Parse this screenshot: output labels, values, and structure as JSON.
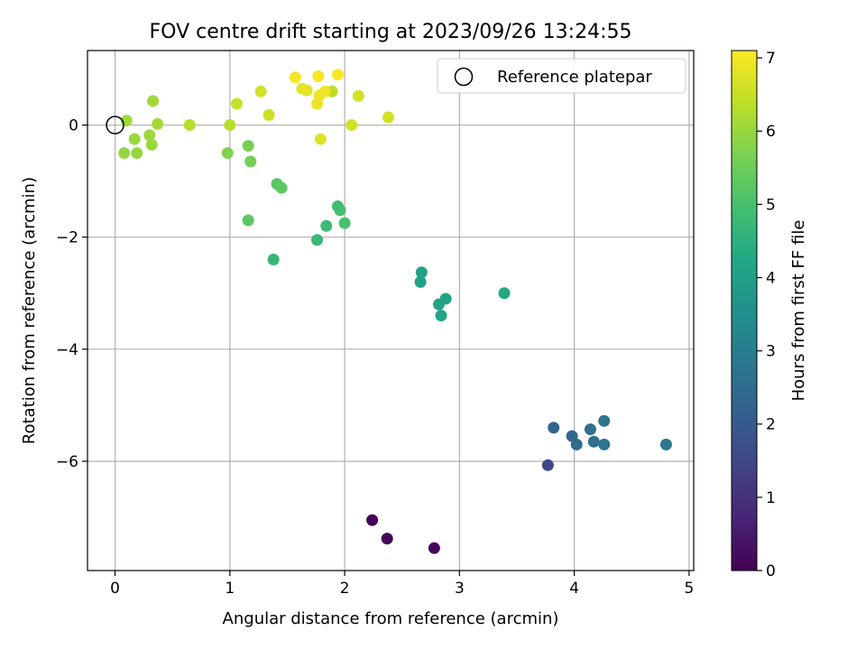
{
  "chart_data": {
    "type": "scatter",
    "title": "FOV centre drift starting at 2023/09/26 13:24:55",
    "xlabel": "Angular distance from reference (arcmin)",
    "ylabel": "Rotation from reference (arcmin)",
    "xlim": [
      -0.24,
      5.04
    ],
    "ylim": [
      -7.95,
      1.33
    ],
    "x_ticks": [
      0,
      1,
      2,
      3,
      4,
      5
    ],
    "y_ticks": [
      -6,
      -4,
      -2,
      0
    ],
    "grid": true,
    "legend": {
      "placement": "top-right",
      "entries": [
        "Reference platepar"
      ]
    },
    "colorbar": {
      "label": "Hours from first FF file",
      "ticks": [
        0,
        1,
        2,
        3,
        4,
        5,
        6,
        7
      ],
      "range": [
        0,
        7.1
      ],
      "colormap": "viridis"
    },
    "reference_point": {
      "x": 0,
      "y": 0
    },
    "points": [
      {
        "x": 2.24,
        "y": -7.05,
        "hours": 0.05
      },
      {
        "x": 2.37,
        "y": -7.38,
        "hours": 0.1
      },
      {
        "x": 2.78,
        "y": -7.55,
        "hours": 0.15
      },
      {
        "x": 3.77,
        "y": -6.07,
        "hours": 1.5
      },
      {
        "x": 3.82,
        "y": -5.4,
        "hours": 2.3
      },
      {
        "x": 3.98,
        "y": -5.55,
        "hours": 2.4
      },
      {
        "x": 4.02,
        "y": -5.7,
        "hours": 2.5
      },
      {
        "x": 4.14,
        "y": -5.43,
        "hours": 2.55
      },
      {
        "x": 4.17,
        "y": -5.65,
        "hours": 2.6
      },
      {
        "x": 4.26,
        "y": -5.28,
        "hours": 2.7
      },
      {
        "x": 4.26,
        "y": -5.7,
        "hours": 2.75
      },
      {
        "x": 4.8,
        "y": -5.7,
        "hours": 2.8
      },
      {
        "x": 2.66,
        "y": -2.8,
        "hours": 4.0
      },
      {
        "x": 2.67,
        "y": -2.63,
        "hours": 4.05
      },
      {
        "x": 2.82,
        "y": -3.2,
        "hours": 4.1
      },
      {
        "x": 2.84,
        "y": -3.4,
        "hours": 4.1
      },
      {
        "x": 2.88,
        "y": -3.1,
        "hours": 4.15
      },
      {
        "x": 3.39,
        "y": -3.0,
        "hours": 4.2
      },
      {
        "x": 1.38,
        "y": -2.4,
        "hours": 4.7
      },
      {
        "x": 1.76,
        "y": -2.05,
        "hours": 4.75
      },
      {
        "x": 1.84,
        "y": -1.8,
        "hours": 4.85
      },
      {
        "x": 1.94,
        "y": -1.45,
        "hours": 4.9
      },
      {
        "x": 1.96,
        "y": -1.52,
        "hours": 4.95
      },
      {
        "x": 2.0,
        "y": -1.75,
        "hours": 5.0
      },
      {
        "x": 1.16,
        "y": -1.7,
        "hours": 5.3
      },
      {
        "x": 1.41,
        "y": -1.05,
        "hours": 5.25
      },
      {
        "x": 1.45,
        "y": -1.12,
        "hours": 5.3
      },
      {
        "x": 1.18,
        "y": -0.65,
        "hours": 5.6
      },
      {
        "x": 1.16,
        "y": -0.37,
        "hours": 5.65
      },
      {
        "x": 0.98,
        "y": -0.5,
        "hours": 5.75
      },
      {
        "x": 0.08,
        "y": -0.5,
        "hours": 5.95
      },
      {
        "x": 0.19,
        "y": -0.5,
        "hours": 5.95
      },
      {
        "x": 0.17,
        "y": -0.25,
        "hours": 6.0
      },
      {
        "x": 0.32,
        "y": -0.35,
        "hours": 6.0
      },
      {
        "x": 0.3,
        "y": -0.18,
        "hours": 6.05
      },
      {
        "x": 0.1,
        "y": 0.08,
        "hours": 6.1
      },
      {
        "x": 0.37,
        "y": 0.02,
        "hours": 6.1
      },
      {
        "x": 0.33,
        "y": 0.43,
        "hours": 6.1
      },
      {
        "x": 0.65,
        "y": 0.0,
        "hours": 6.3
      },
      {
        "x": 1.0,
        "y": 0.0,
        "hours": 6.3
      },
      {
        "x": 1.89,
        "y": 0.6,
        "hours": 6.35
      },
      {
        "x": 1.06,
        "y": 0.38,
        "hours": 6.5
      },
      {
        "x": 1.34,
        "y": 0.18,
        "hours": 6.55
      },
      {
        "x": 1.27,
        "y": 0.6,
        "hours": 6.6
      },
      {
        "x": 2.12,
        "y": 0.52,
        "hours": 6.6
      },
      {
        "x": 2.06,
        "y": 0.0,
        "hours": 6.6
      },
      {
        "x": 2.38,
        "y": 0.14,
        "hours": 6.6
      },
      {
        "x": 1.79,
        "y": -0.25,
        "hours": 6.75
      },
      {
        "x": 1.63,
        "y": 0.65,
        "hours": 6.8
      },
      {
        "x": 1.67,
        "y": 0.62,
        "hours": 6.85
      },
      {
        "x": 1.76,
        "y": 0.38,
        "hours": 6.9
      },
      {
        "x": 1.78,
        "y": 0.53,
        "hours": 6.9
      },
      {
        "x": 1.83,
        "y": 0.6,
        "hours": 6.95
      },
      {
        "x": 1.57,
        "y": 0.85,
        "hours": 7.0
      },
      {
        "x": 1.77,
        "y": 0.87,
        "hours": 7.0
      },
      {
        "x": 1.94,
        "y": 0.9,
        "hours": 7.05
      }
    ]
  }
}
